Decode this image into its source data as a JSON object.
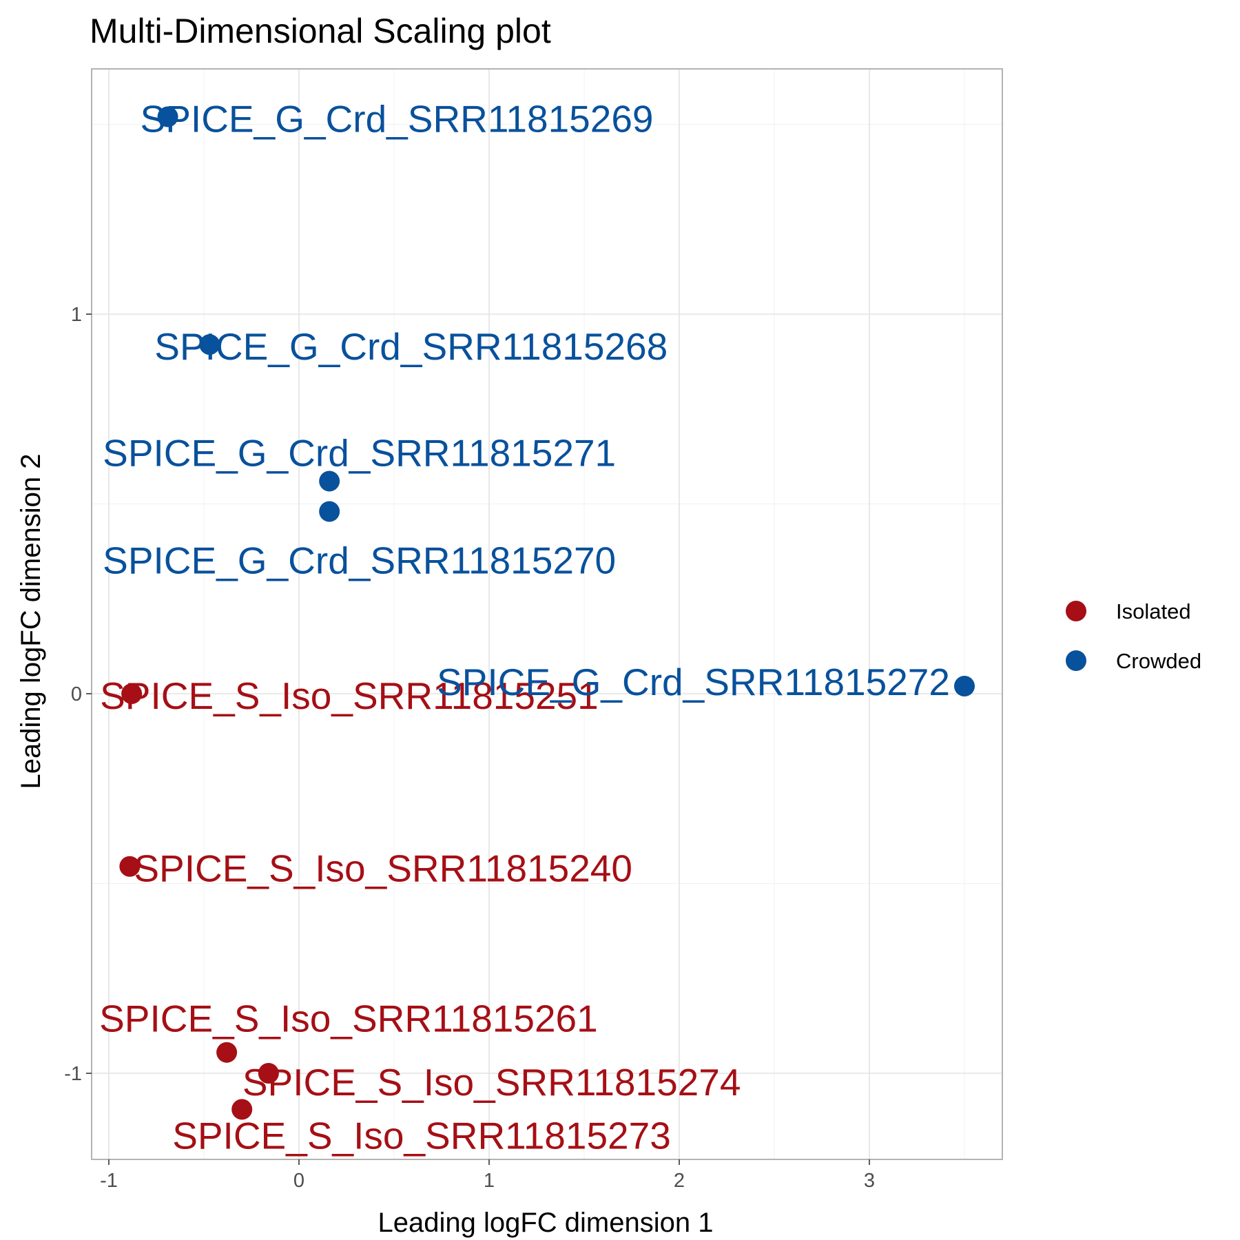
{
  "chart_data": {
    "type": "scatter",
    "title": "Multi-Dimensional Scaling plot",
    "xlabel": "Leading logFC dimension 1",
    "ylabel": "Leading logFC dimension 2",
    "xlim": [
      -1.0,
      3.7
    ],
    "ylim": [
      -1.22,
      1.65
    ],
    "x_ticks": [
      -1,
      0,
      1,
      2,
      3
    ],
    "y_ticks": [
      -1,
      0,
      1
    ],
    "x_tick_labels": [
      "-1",
      "0",
      "1",
      "2",
      "3"
    ],
    "y_tick_labels": [
      "-1",
      "0",
      "1"
    ],
    "grid": true,
    "legend_position": "right",
    "series": [
      {
        "name": "Isolated",
        "color": "#A50F15",
        "points": [
          {
            "label": "SPICE_S_Iso_SRR11815251",
            "x": -0.88,
            "y": 0.0
          },
          {
            "label": "SPICE_S_Iso_SRR11815240",
            "x": -0.89,
            "y": -0.455
          },
          {
            "label": "SPICE_S_Iso_SRR11815261",
            "x": -0.38,
            "y": -0.945
          },
          {
            "label": "SPICE_S_Iso_SRR11815274",
            "x": -0.16,
            "y": -1.0
          },
          {
            "label": "SPICE_S_Iso_SRR11815273",
            "x": -0.3,
            "y": -1.095
          }
        ]
      },
      {
        "name": "Crowded",
        "color": "#08519C",
        "points": [
          {
            "label": "SPICE_G_Crd_SRR11815269",
            "x": -0.69,
            "y": 1.52
          },
          {
            "label": "SPICE_G_Crd_SRR11815268",
            "x": -0.47,
            "y": 0.92
          },
          {
            "label": "SPICE_G_Crd_SRR11815271",
            "x": 0.16,
            "y": 0.56
          },
          {
            "label": "SPICE_G_Crd_SRR11815270",
            "x": 0.16,
            "y": 0.48
          },
          {
            "label": "SPICE_G_Crd_SRR11815272",
            "x": 3.5,
            "y": 0.02
          }
        ]
      }
    ]
  }
}
